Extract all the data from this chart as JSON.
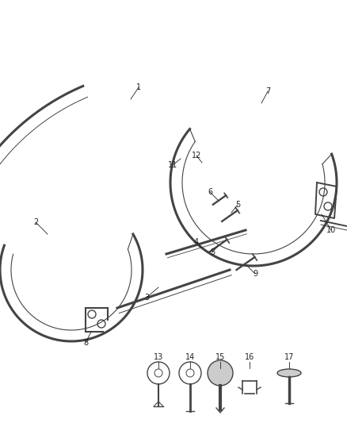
{
  "bg_color": "#ffffff",
  "line_color": "#444444",
  "label_color": "#222222",
  "lw_thick": 2.2,
  "lw_thin": 1.0,
  "lw_label": 0.6,
  "fontsize": 7.0
}
